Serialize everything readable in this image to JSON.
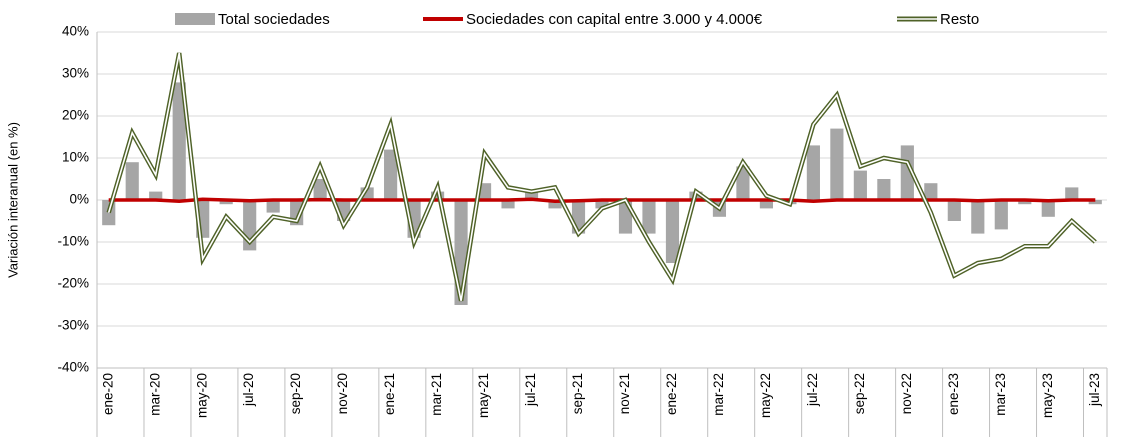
{
  "chart_data": {
    "type": "bar-line",
    "y_label": "Variación interanual (en %)",
    "categories": [
      "ene-20",
      null,
      "mar-20",
      null,
      "may-20",
      null,
      "jul-20",
      null,
      "sep-20",
      null,
      "nov-20",
      null,
      "ene-21",
      null,
      "mar-21",
      null,
      "may-21",
      null,
      "jul-21",
      null,
      "sep-21",
      null,
      "nov-21",
      null,
      "ene-22",
      null,
      "mar-22",
      null,
      "may-22",
      null,
      "jul-22",
      null,
      "sep-22",
      null,
      "nov-22",
      null,
      "ene-23",
      null,
      "mar-23",
      null,
      "may-23",
      null,
      "jul-23"
    ],
    "series": [
      {
        "name": "Total sociedades",
        "color": "#a6a6a6",
        "kind": "bar",
        "values": [
          -6,
          9,
          2,
          28,
          -9,
          -1,
          -12,
          -3,
          -6,
          5,
          -5,
          3,
          12,
          -9,
          2,
          -25,
          4,
          -2,
          2,
          -2,
          -8,
          -2,
          -8,
          -8,
          -15,
          2,
          -4,
          8,
          -2,
          -1,
          13,
          17,
          7,
          5,
          13,
          4,
          -5,
          -8,
          -7,
          -1,
          -4,
          3,
          -1
        ]
      },
      {
        "name": "Sociedades con capital entre 3.000 y 4.000€",
        "color": "#c00000",
        "kind": "line",
        "values": [
          0,
          0,
          0,
          -0.3,
          0.2,
          0,
          -0.2,
          0,
          0,
          0.1,
          0,
          0,
          0,
          0,
          0,
          0,
          0,
          0,
          0.2,
          -0.3,
          -0.2,
          0,
          0,
          0,
          0,
          0,
          0,
          0,
          0,
          0,
          -0.3,
          0,
          0,
          0,
          0,
          0,
          0,
          -0.2,
          0,
          0,
          -0.2,
          0,
          0
        ]
      },
      {
        "name": "Resto",
        "color": "#4f6228",
        "kind": "double-line",
        "values": [
          -3,
          16,
          6,
          35,
          -14,
          -4,
          -10,
          -4,
          -5,
          8,
          -6,
          3,
          18,
          -10,
          3,
          -24,
          11,
          3,
          2,
          3,
          -8,
          -2,
          0,
          -10,
          -19,
          2,
          -2,
          9,
          1,
          -1,
          18,
          25,
          8,
          10,
          9,
          -3,
          -18,
          -15,
          -14,
          -11,
          -11,
          -5,
          -10
        ]
      }
    ],
    "ylim": [
      -40,
      40
    ],
    "yticks": [
      {
        "value": -40,
        "label": "-40%"
      },
      {
        "value": -30,
        "label": "-30%"
      },
      {
        "value": -20,
        "label": "-20%"
      },
      {
        "value": -10,
        "label": "-10%"
      },
      {
        "value": 0,
        "label": "0%"
      },
      {
        "value": 10,
        "label": "10%"
      },
      {
        "value": 20,
        "label": "20%"
      },
      {
        "value": 30,
        "label": "30%"
      },
      {
        "value": 40,
        "label": "40%"
      }
    ],
    "grid": true,
    "legend": "top"
  }
}
